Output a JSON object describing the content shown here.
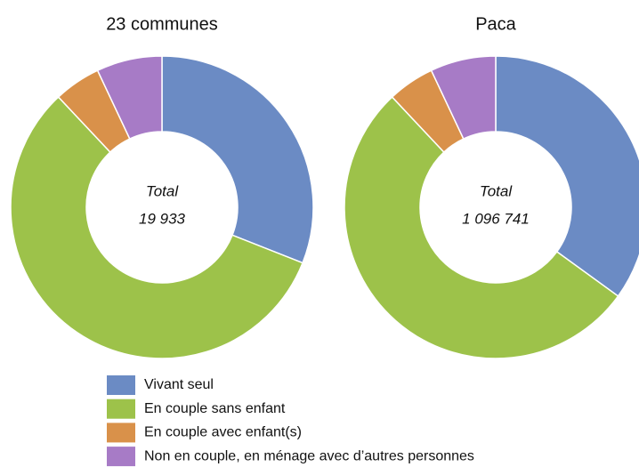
{
  "chart_data": [
    {
      "type": "pie",
      "title": "23 communes",
      "center_label": "Total",
      "total": "19 933",
      "categories": [
        "Vivant seul",
        "En couple sans enfant",
        "En couple avec enfant(s)",
        "Non en couple, en ménage avec d’autres personnes"
      ],
      "values": [
        31,
        57,
        5,
        7
      ],
      "colors": [
        "#6b8bc4",
        "#9dc24a",
        "#d9914a",
        "#a77bc6"
      ]
    },
    {
      "type": "pie",
      "title": "Paca",
      "center_label": "Total",
      "total": "1 096 741",
      "categories": [
        "Vivant seul",
        "En couple sans enfant",
        "En couple avec enfant(s)",
        "Non en couple, en ménage avec d’autres personnes"
      ],
      "values": [
        35,
        53,
        5,
        7
      ],
      "colors": [
        "#6b8bc4",
        "#9dc24a",
        "#d9914a",
        "#a77bc6"
      ]
    }
  ]
}
